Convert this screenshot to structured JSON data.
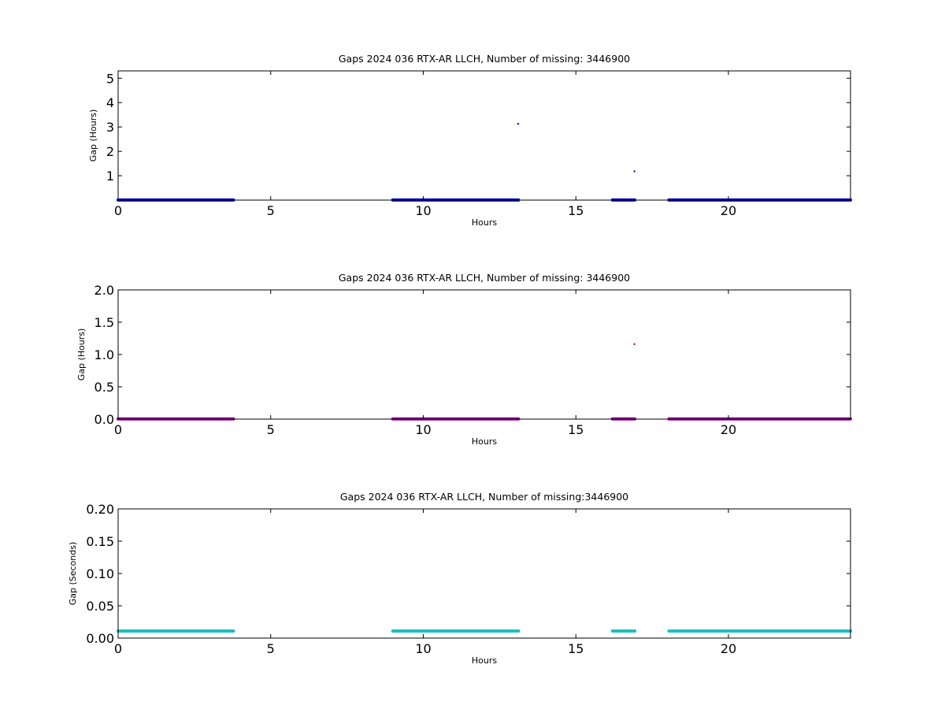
{
  "chart_data": [
    {
      "type": "scatter",
      "title": "Gaps 2024 036 RTX-AR  LLCH, Number of missing: 3446900",
      "xlabel": "Hours",
      "ylabel": "Gap (Hours)",
      "xlim": [
        0,
        24
      ],
      "ylim": [
        0,
        5.3
      ],
      "xticks": [
        "0",
        "5",
        "10",
        "15",
        "20"
      ],
      "xtick_values": [
        0,
        5,
        10,
        15,
        20
      ],
      "yticks": [
        "1",
        "2",
        "3",
        "4",
        "5"
      ],
      "ytick_values": [
        1,
        2,
        3,
        4,
        5
      ],
      "color": "#0000cc",
      "baseline": 0.003,
      "segments": [
        [
          0,
          3.78
        ],
        [
          9.0,
          13.12
        ],
        [
          16.2,
          16.93
        ],
        [
          18.05,
          24
        ]
      ],
      "points": [
        {
          "x": 13.11,
          "y": 3.13
        },
        {
          "x": 16.92,
          "y": 1.18
        }
      ]
    },
    {
      "type": "scatter",
      "title": "Gaps 2024 036 RTX-AR  LLCH, Number of missing: 3446900",
      "xlabel": "Hours",
      "ylabel": "Gap (Hours)",
      "xlim": [
        0,
        24
      ],
      "ylim": [
        0,
        2.0
      ],
      "xticks": [
        "0",
        "5",
        "10",
        "15",
        "20"
      ],
      "xtick_values": [
        0,
        5,
        10,
        15,
        20
      ],
      "yticks": [
        "0.0",
        "0.5",
        "1.0",
        "1.5",
        "2.0"
      ],
      "ytick_values": [
        0,
        0.5,
        1.0,
        1.5,
        2.0
      ],
      "color": "#a000a8",
      "baseline": 0.003,
      "segments": [
        [
          0,
          3.78
        ],
        [
          9.0,
          13.12
        ],
        [
          16.2,
          16.93
        ],
        [
          18.05,
          24
        ]
      ],
      "points": [
        {
          "x": 16.92,
          "y": 1.16
        }
      ]
    },
    {
      "type": "scatter",
      "title": "Gaps 2024 036 RTX-AR  LLCH, Number of missing:3446900",
      "xlabel": "Hours",
      "ylabel": "Gap (Seconds)",
      "xlim": [
        0,
        24
      ],
      "ylim": [
        0,
        0.2
      ],
      "xticks": [
        "0",
        "5",
        "10",
        "15",
        "20"
      ],
      "xtick_values": [
        0,
        5,
        10,
        15,
        20
      ],
      "yticks": [
        "0.00",
        "0.05",
        "0.10",
        "0.15",
        "0.20"
      ],
      "ytick_values": [
        0,
        0.05,
        0.1,
        0.15,
        0.2
      ],
      "color": "#1abfbf",
      "baseline": 0.011,
      "segments": [
        [
          0,
          3.78
        ],
        [
          9.0,
          13.12
        ],
        [
          16.2,
          16.93
        ],
        [
          18.05,
          24
        ]
      ],
      "points": []
    }
  ]
}
